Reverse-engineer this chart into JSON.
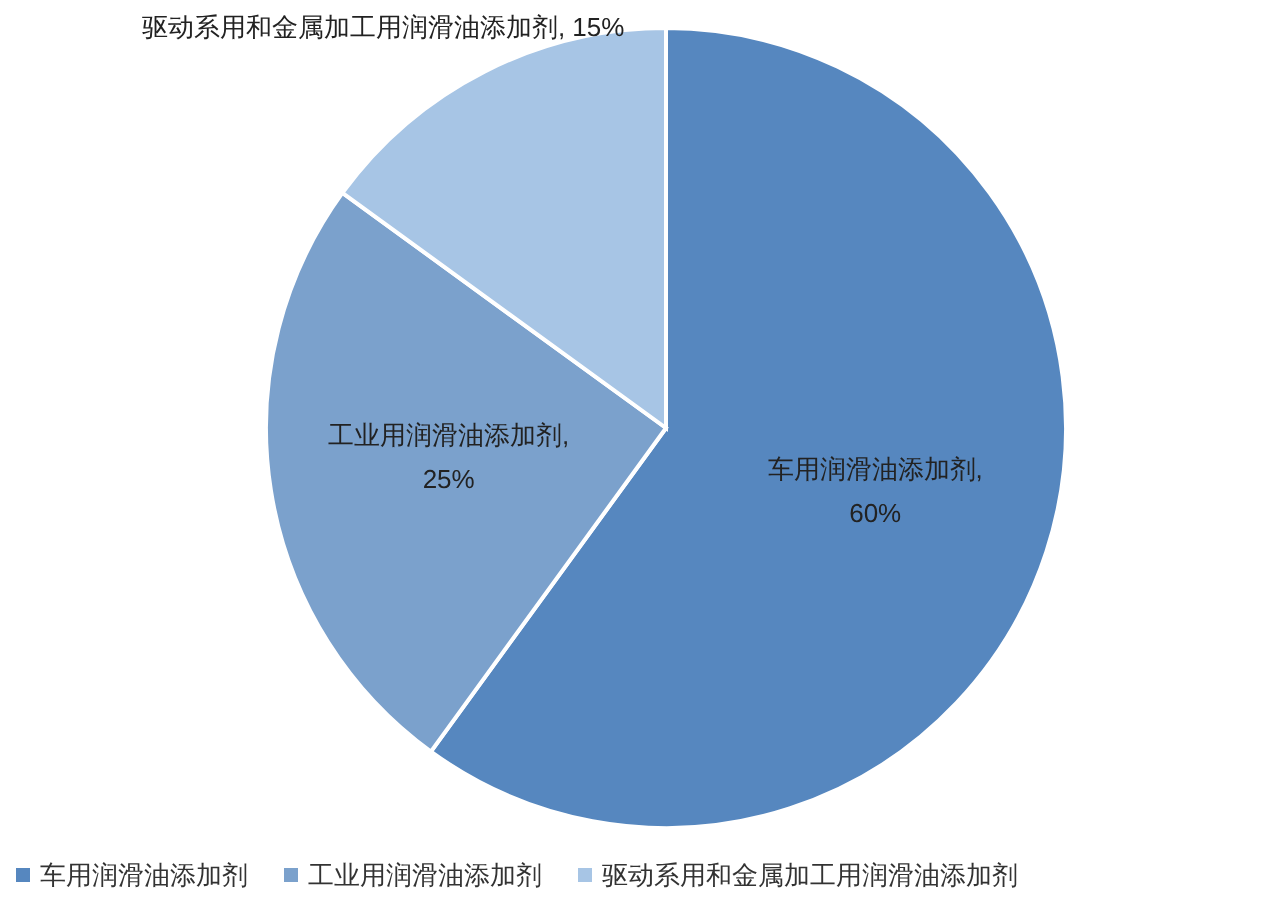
{
  "chart_data": {
    "type": "pie",
    "categories": [
      "车用润滑油添加剂",
      "工业用润滑油添加剂",
      "驱动系用和金属加工用润滑油添加剂"
    ],
    "values": [
      60,
      25,
      15
    ],
    "colors": [
      "#5687bf",
      "#7ba1cc",
      "#a7c5e5"
    ],
    "value_labels": [
      "车用润滑油添加剂,\n60%",
      "工业用润滑油添加剂,\n25%",
      "驱动系用和金属加工用润滑油添加剂, 15%"
    ],
    "legend": "bottom"
  }
}
